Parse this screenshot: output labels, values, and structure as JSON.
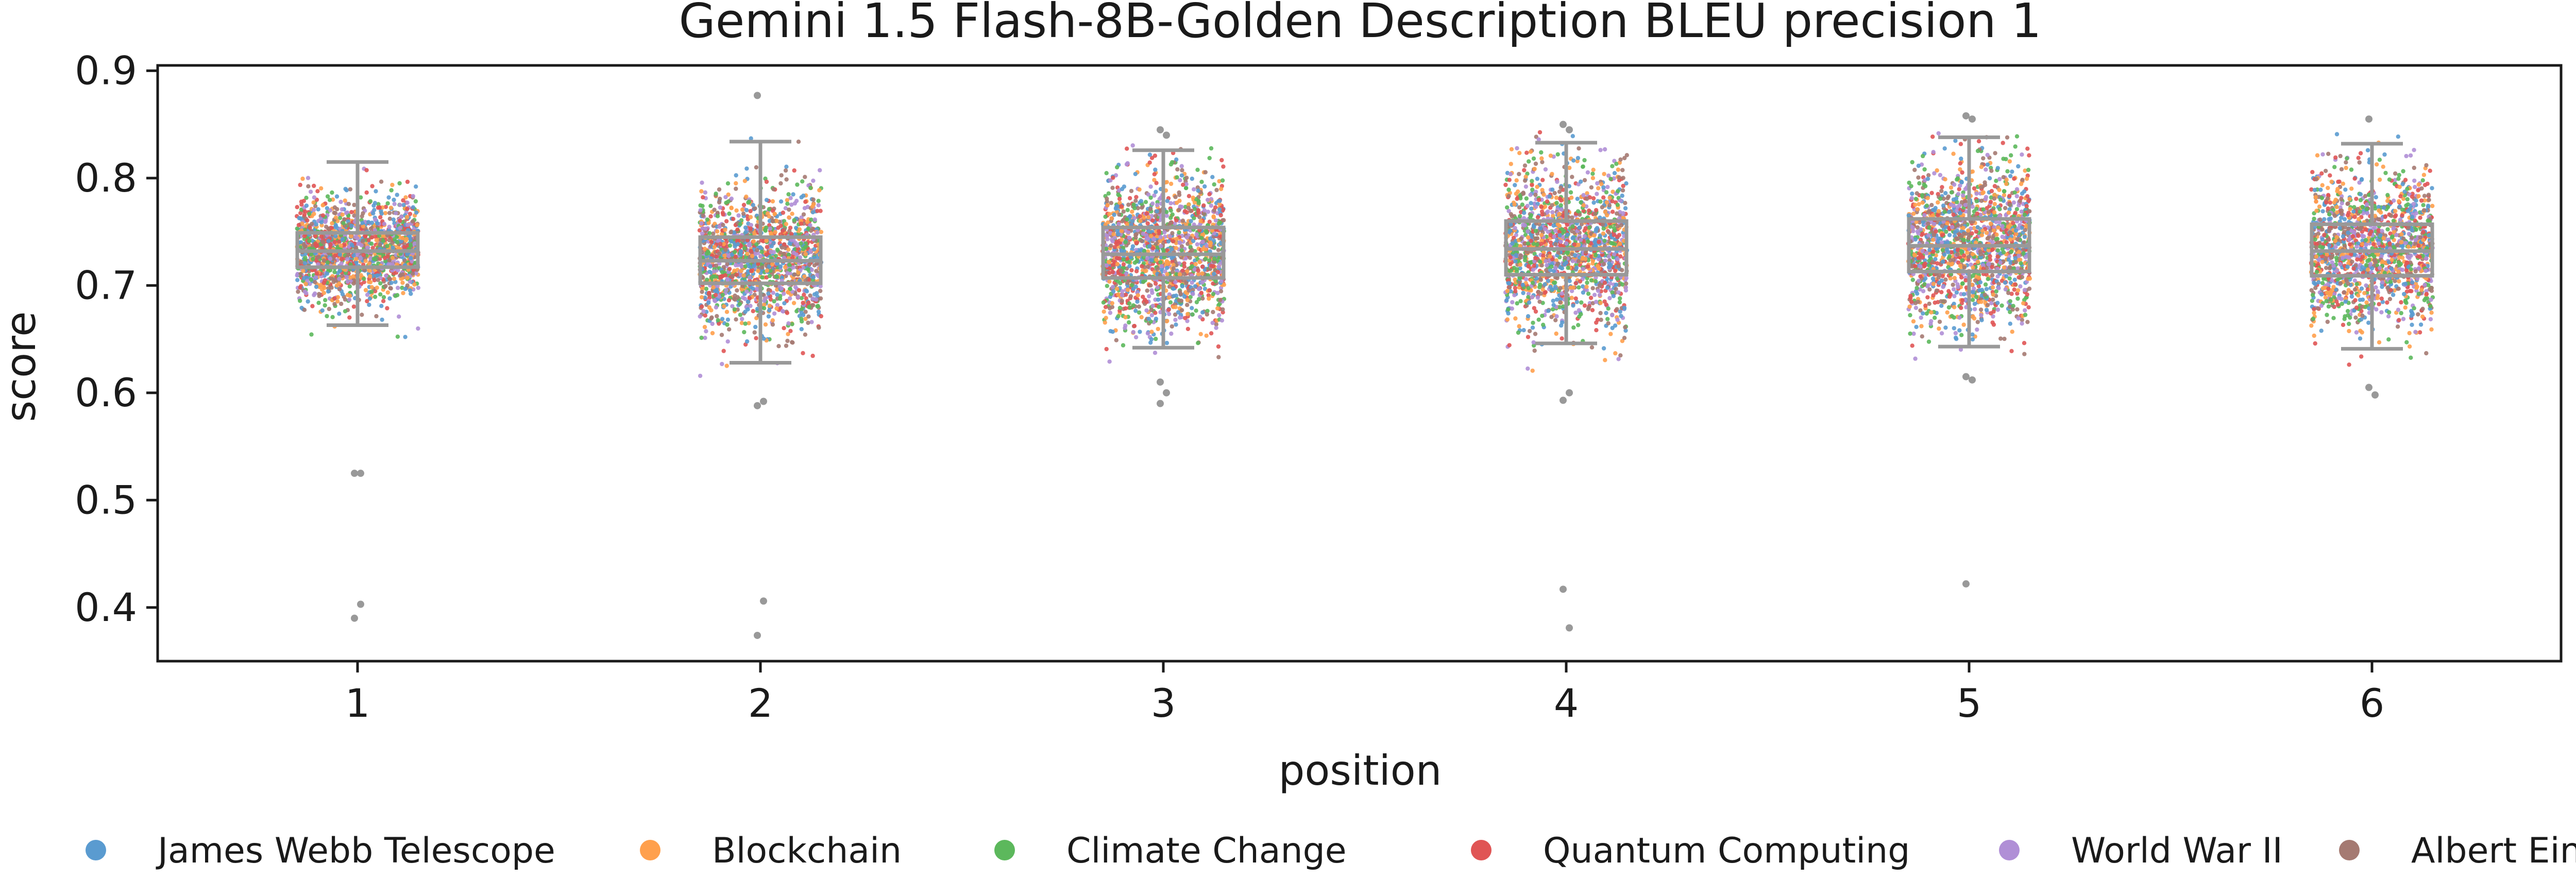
{
  "chart_data": {
    "type": "box-strip",
    "title": "Gemini 1.5 Flash-8B-Golden Description BLEU precision 1",
    "xlabel": "position",
    "ylabel": "score",
    "categories": [
      "1",
      "2",
      "3",
      "4",
      "5",
      "6"
    ],
    "y_ticks": [
      "0.4",
      "0.5",
      "0.6",
      "0.7",
      "0.8",
      "0.9"
    ],
    "ylim": [
      0.35,
      0.905
    ],
    "grid": false,
    "legend_placement": "bottom",
    "boxes": [
      {
        "position": "1",
        "whisker_low": 0.663,
        "q1": 0.717,
        "median": 0.732,
        "q3": 0.749,
        "whisker_high": 0.815,
        "outliers": [
          0.525,
          0.403,
          0.39,
          0.525
        ]
      },
      {
        "position": "2",
        "whisker_low": 0.628,
        "q1": 0.702,
        "median": 0.723,
        "q3": 0.745,
        "whisker_high": 0.834,
        "outliers": [
          0.877,
          0.406,
          0.374,
          0.592,
          0.588
        ]
      },
      {
        "position": "3",
        "whisker_low": 0.642,
        "q1": 0.707,
        "median": 0.729,
        "q3": 0.754,
        "whisker_high": 0.826,
        "outliers": [
          0.845,
          0.84,
          0.59,
          0.6,
          0.61
        ]
      },
      {
        "position": "4",
        "whisker_low": 0.646,
        "q1": 0.71,
        "median": 0.734,
        "q3": 0.76,
        "whisker_high": 0.833,
        "outliers": [
          0.85,
          0.845,
          0.417,
          0.381,
          0.593,
          0.6
        ]
      },
      {
        "position": "5",
        "whisker_low": 0.643,
        "q1": 0.713,
        "median": 0.737,
        "q3": 0.762,
        "whisker_high": 0.838,
        "outliers": [
          0.858,
          0.855,
          0.422,
          0.612,
          0.615
        ]
      },
      {
        "position": "6",
        "whisker_low": 0.641,
        "q1": 0.709,
        "median": 0.732,
        "q3": 0.757,
        "whisker_high": 0.832,
        "outliers": [
          0.855,
          0.598,
          0.605
        ]
      }
    ],
    "series": [
      {
        "name": "James Webb Telescope",
        "color": "#5a9bd0"
      },
      {
        "name": "Blockchain",
        "color": "#ffa04d"
      },
      {
        "name": "Climate Change",
        "color": "#5cb85c"
      },
      {
        "name": "Quantum Computing",
        "color": "#e05555"
      },
      {
        "name": "World War II",
        "color": "#b08fd6"
      },
      {
        "name": "Albert Einstein",
        "color": "#a57a72"
      }
    ],
    "box_color": "#999999"
  }
}
